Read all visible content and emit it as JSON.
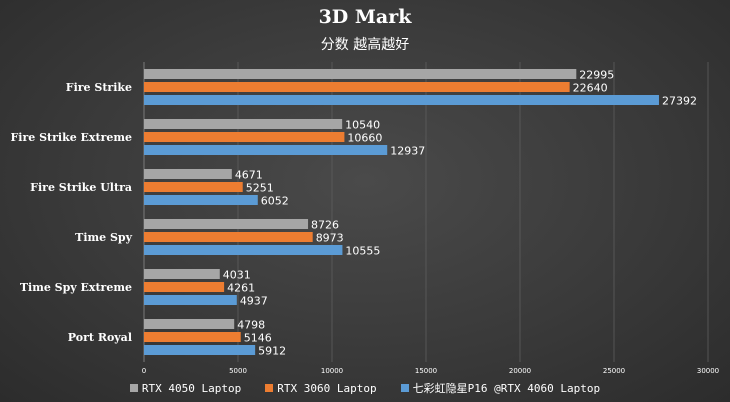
{
  "chart_data": {
    "type": "bar",
    "orientation": "horizontal",
    "title": "3D Mark",
    "subtitle": "分数 越高越好",
    "categories": [
      "Fire Strike",
      "Fire Strike Extreme",
      "Fire Strike Ultra",
      "Time Spy",
      "Time Spy Extreme",
      "Port Royal"
    ],
    "series": [
      {
        "name": "RTX 4050 Laptop",
        "color": "#a6a6a6",
        "values": [
          22995,
          10540,
          4671,
          8726,
          4031,
          4798
        ]
      },
      {
        "name": "RTX 3060 Laptop",
        "color": "#ed7d31",
        "values": [
          22640,
          10660,
          5251,
          8973,
          4261,
          5146
        ]
      },
      {
        "name": "七彩虹隐星P16 @RTX 4060 Laptop",
        "color": "#5b9bd5",
        "values": [
          27392,
          12937,
          6052,
          10555,
          4937,
          5912
        ]
      }
    ],
    "xlim": [
      0,
      30000
    ],
    "xticks": [
      "0",
      "5000",
      "10000",
      "15000",
      "20000",
      "25000",
      "30000"
    ],
    "grid": true,
    "legend_position": "bottom"
  }
}
